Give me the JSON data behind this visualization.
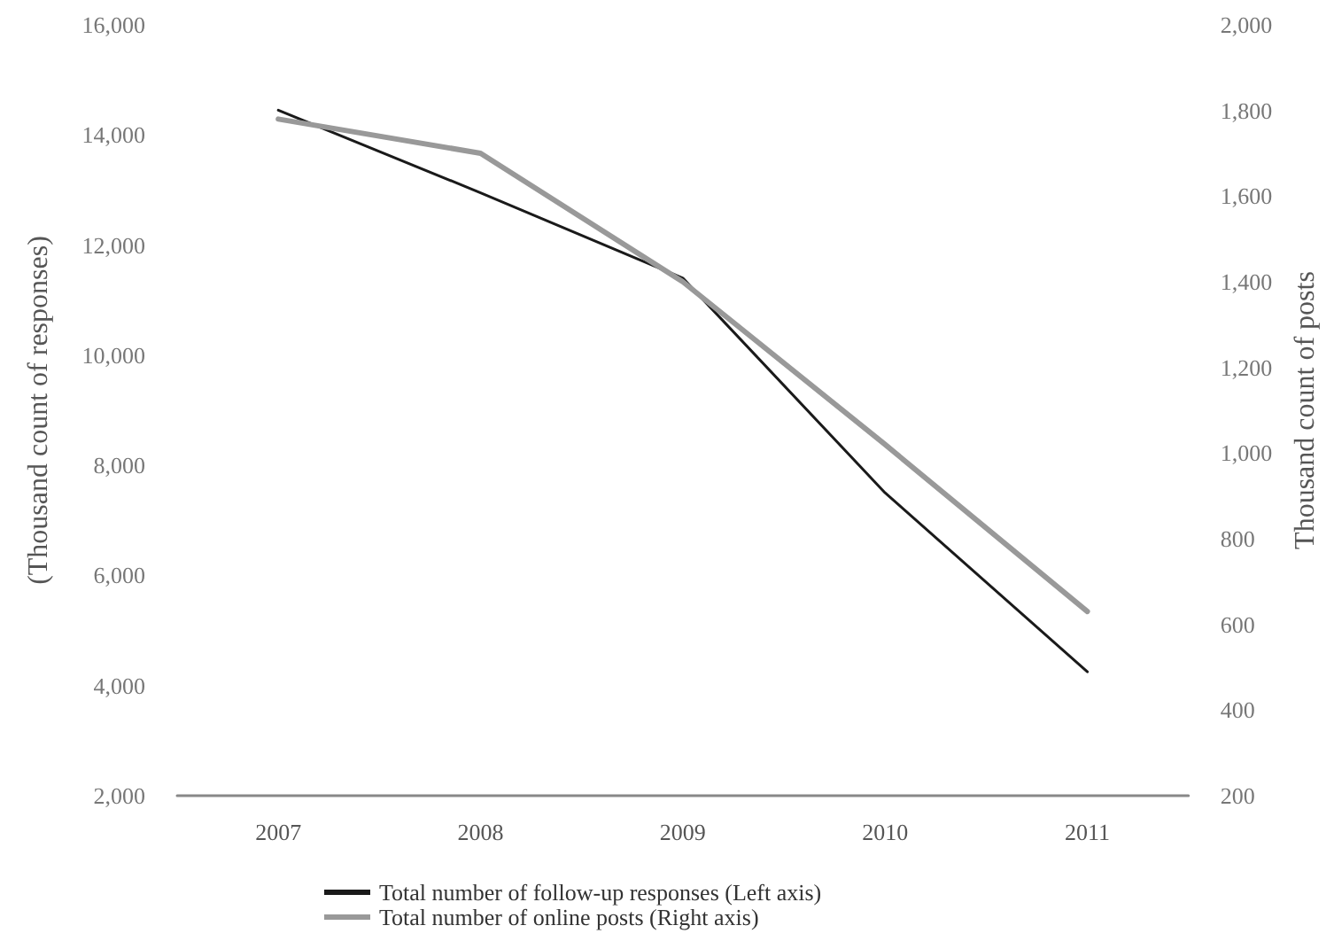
{
  "chart_data": {
    "type": "line",
    "categories": [
      "2007",
      "2008",
      "2009",
      "2010",
      "2011"
    ],
    "series": [
      {
        "name": "Total number of follow-up responses (Left axis)",
        "color": "#1a1a1a",
        "values": [
          14450,
          12950,
          11400,
          7500,
          4250
        ]
      },
      {
        "name": "Total number of online posts (Right axis)",
        "color": "#999999",
        "axis": "y2",
        "values": [
          1780,
          1700,
          1400,
          1020,
          630
        ]
      }
    ],
    "ylabel": "(Thousand count of responses)",
    "y2label": "Thousand count of posts",
    "ylim": [
      2000,
      16000
    ],
    "yticks": [
      {
        "value": 2000,
        "label": "2,000"
      },
      {
        "value": 4000,
        "label": "4,000"
      },
      {
        "value": 6000,
        "label": "6,000"
      },
      {
        "value": 8000,
        "label": "8,000"
      },
      {
        "value": 10000,
        "label": "10,000"
      },
      {
        "value": 12000,
        "label": "12,000"
      },
      {
        "value": 14000,
        "label": "14,000"
      },
      {
        "value": 16000,
        "label": "16,000"
      }
    ],
    "y2lim": [
      200,
      2000
    ],
    "y2ticks": [
      200,
      400,
      600,
      800,
      {
        "value": 1000,
        "label": "1,000"
      },
      {
        "value": 1200,
        "label": "1,200"
      },
      {
        "value": 1400,
        "label": "1,400"
      },
      {
        "value": 1600,
        "label": "1,600"
      },
      {
        "value": 1800,
        "label": "1,800"
      },
      {
        "value": 2000,
        "label": "2,000"
      }
    ],
    "grid": false,
    "legend": "bottom",
    "marker": "none",
    "line_style": "solid"
  }
}
